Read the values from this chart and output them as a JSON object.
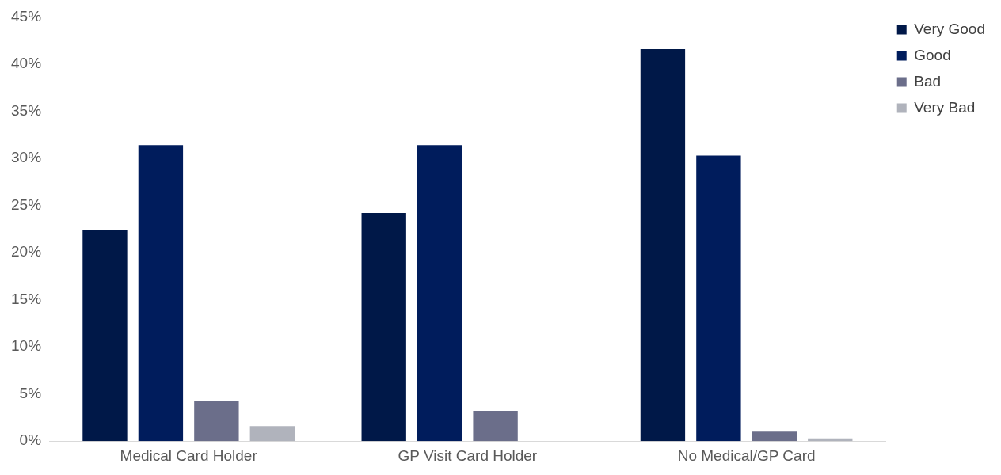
{
  "chart_data": {
    "type": "bar",
    "categories": [
      "Medical Card Holder",
      "GP Visit Card Holder",
      "No Medical/GP Card"
    ],
    "series": [
      {
        "name": "Very Good",
        "color": "#001848",
        "values": [
          22.4,
          24.2,
          41.6
        ]
      },
      {
        "name": "Good",
        "color": "#001c5c",
        "values": [
          31.4,
          31.4,
          30.3
        ]
      },
      {
        "name": "Bad",
        "color": "#6b6e8a",
        "values": [
          4.3,
          3.2,
          1.0
        ]
      },
      {
        "name": "Very Bad",
        "color": "#b0b3bc",
        "values": [
          1.6,
          0,
          0.3
        ]
      }
    ],
    "ylim": [
      0,
      45
    ],
    "yticks": [
      {
        "value": 0,
        "label": "0%"
      },
      {
        "value": 5,
        "label": "5%"
      },
      {
        "value": 10,
        "label": "10%"
      },
      {
        "value": 15,
        "label": "15%"
      },
      {
        "value": 20,
        "label": "20%"
      },
      {
        "value": 25,
        "label": "25%"
      },
      {
        "value": 30,
        "label": "30%"
      },
      {
        "value": 35,
        "label": "35%"
      },
      {
        "value": 40,
        "label": "40%"
      },
      {
        "value": 45,
        "label": "45%"
      }
    ],
    "grid": false,
    "legend": "top right"
  }
}
